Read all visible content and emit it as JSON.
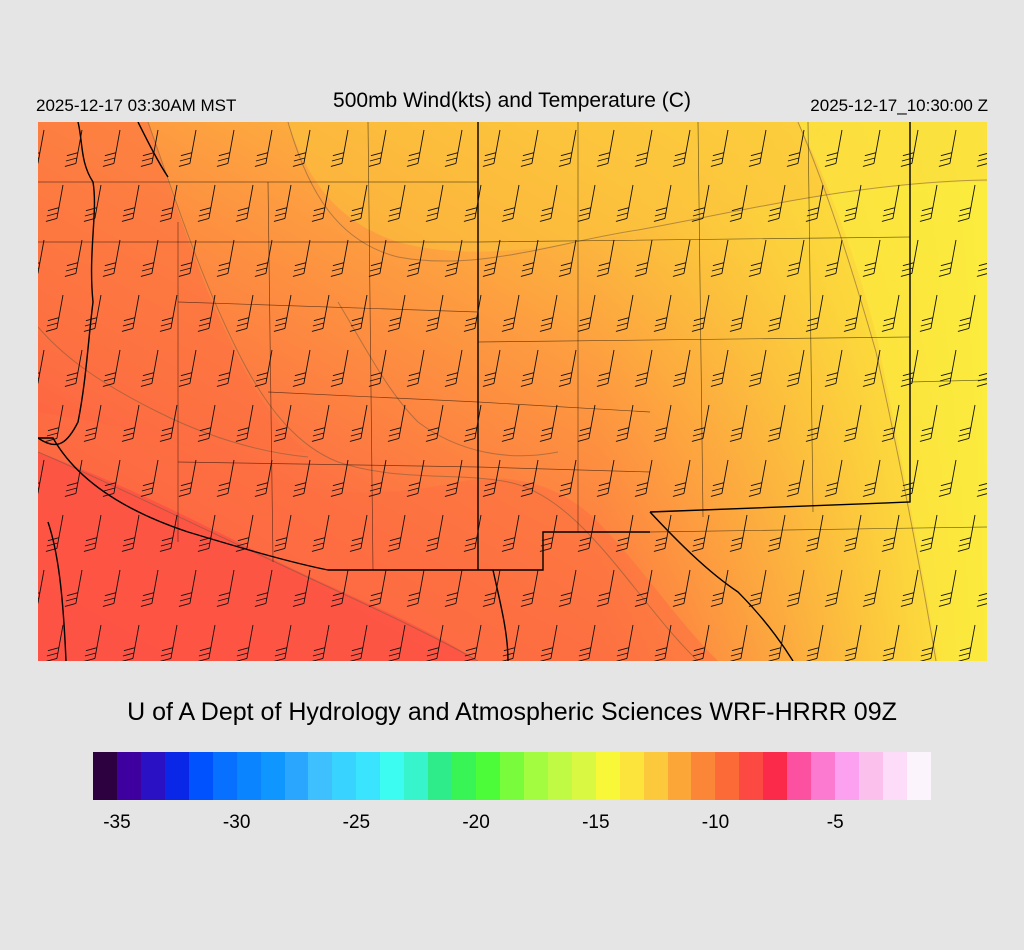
{
  "header": {
    "valid_local": "2025-12-17 03:30AM MST",
    "title": "500mb Wind(kts) and Temperature (C)",
    "valid_utc": "2025-12-17_10:30:00 Z"
  },
  "credit": "U of A Dept of Hydrology and Atmospheric Sciences WRF-HRRR 09Z",
  "map": {
    "field": "500mb temperature",
    "barb_direction": "west-northwest",
    "colors": {
      "warm_yellow": "#fbe940",
      "light_orange": "#fcc33c",
      "orange": "#fd9a40",
      "deep_orange": "#fd7042",
      "red": "#fc4f45",
      "frame": "#cfcfcf",
      "borders": "#000000",
      "contours": "#7a5a3c"
    }
  },
  "colorbar": {
    "colors": [
      "#2d0040",
      "#3f00a0",
      "#2a12c4",
      "#0a26e6",
      "#0052ff",
      "#0870ff",
      "#0a84ff",
      "#1096ff",
      "#2aa6ff",
      "#3ec0ff",
      "#38d4ff",
      "#3ae4ff",
      "#3cfcf2",
      "#38f4cc",
      "#2eec8a",
      "#38f454",
      "#4cfc38",
      "#78fc3c",
      "#a4fc40",
      "#c0fa44",
      "#d8f842",
      "#f8f838",
      "#fce43c",
      "#fcc83c",
      "#fca638",
      "#fc8638",
      "#fc6a38",
      "#fc4a42",
      "#fc2a4a",
      "#fc50a0",
      "#fc7ad0",
      "#fca0f0",
      "#fcc0ec",
      "#fcdcf8",
      "#fcf4fc"
    ],
    "tick_labels": [
      "-35",
      "-30",
      "-25",
      "-20",
      "-15",
      "-10",
      "-5"
    ],
    "tick_values": [
      -35,
      -30,
      -25,
      -20,
      -15,
      -10,
      -5
    ],
    "min": -36,
    "max": -1
  }
}
